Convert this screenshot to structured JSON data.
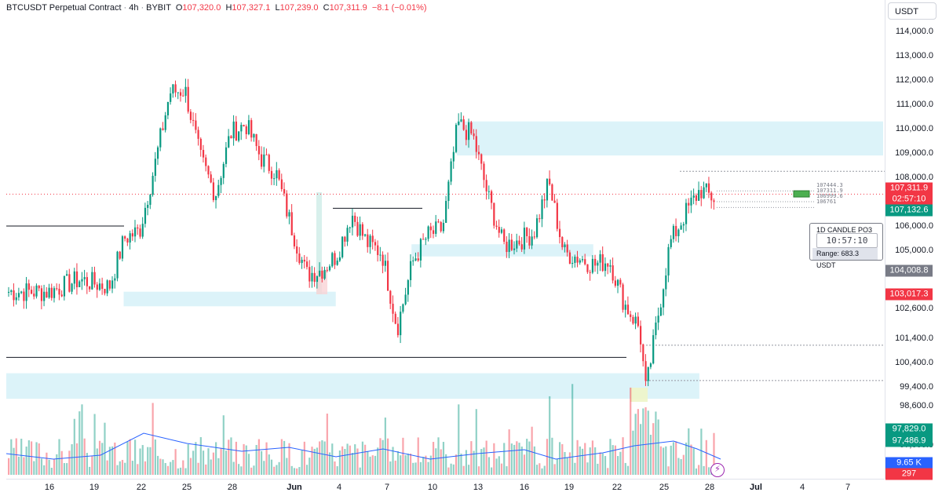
{
  "header": {
    "symbol": "BTCUSDT Perpetual Contract",
    "interval": "4h",
    "exchange": "BYBIT",
    "o_label": "O",
    "o_value": "107,320.0",
    "h_label": "H",
    "h_value": "107,327.1",
    "l_label": "L",
    "l_value": "107,239.0",
    "c_label": "C",
    "c_value": "107,311.9",
    "change": "−8.1 (−0.01%)"
  },
  "currency": "USDT",
  "price_ticks": [
    "114,000.0",
    "113,000.0",
    "112,000.0",
    "111,000.0",
    "110,000.0",
    "109,000.0",
    "108,000.0",
    "106,000.0",
    "105,000.0",
    "102,600.0",
    "101,400.0",
    "100,400.0",
    "99,400.0",
    "98,600.0",
    "97,000.0"
  ],
  "price_tags": [
    {
      "text": "107,311.9",
      "color": "#f23645"
    },
    {
      "text": "02:57:10",
      "color": "#f23645"
    },
    {
      "text": "107,132.6",
      "color": "#089981"
    },
    {
      "text": "104,008.8",
      "color": "#787b86"
    },
    {
      "text": "103,017.3",
      "color": "#f23645"
    },
    {
      "text": "97,829.0",
      "color": "#089981"
    },
    {
      "text": "97,486.9",
      "color": "#089981"
    },
    {
      "text": "9.65 K",
      "color": "#2962ff"
    },
    {
      "text": "297",
      "color": "#f23645"
    }
  ],
  "time_ticks": [
    "16",
    "19",
    "22",
    "25",
    "28",
    "Jun",
    "4",
    "7",
    "10",
    "13",
    "16",
    "19",
    "22",
    "25",
    "28",
    "Jul",
    "4",
    "7"
  ],
  "countdown_widget": {
    "title": "1D CANDLE PO3",
    "time": "10:57:10",
    "range": "Range: 683.3 USDT"
  },
  "mini_labels": [
    "107444.3",
    "107311.9",
    "106999.6",
    "106761"
  ],
  "lightning_icon": "⚡",
  "colors": {
    "up": "#089981",
    "down": "#f23645",
    "zone_blue": "#d6f1f8",
    "ma_line": "#2962ff"
  },
  "chart_data": {
    "type": "candlestick",
    "symbol": "BTCUSDT",
    "interval": "4h",
    "ylim": [
      96300,
      115000
    ],
    "last_close": 107311.9,
    "close_path": [
      {
        "x": "May 14",
        "y": 103300
      },
      {
        "x": "May 16",
        "y": 103800
      },
      {
        "x": "May 18",
        "y": 103500
      },
      {
        "x": "May 19",
        "y": 105500
      },
      {
        "x": "May 20",
        "y": 105800
      },
      {
        "x": "May 21",
        "y": 108500
      },
      {
        "x": "May 22",
        "y": 111500
      },
      {
        "x": "May 23",
        "y": 111600
      },
      {
        "x": "May 24",
        "y": 108800
      },
      {
        "x": "May 25",
        "y": 107300
      },
      {
        "x": "May 26",
        "y": 109800
      },
      {
        "x": "May 27",
        "y": 110200
      },
      {
        "x": "May 28",
        "y": 108800
      },
      {
        "x": "May 29",
        "y": 108200
      },
      {
        "x": "May 30",
        "y": 106000
      },
      {
        "x": "May 31",
        "y": 104000
      },
      {
        "x": "Jun 1",
        "y": 104200
      },
      {
        "x": "Jun 2",
        "y": 104800
      },
      {
        "x": "Jun 3",
        "y": 106500
      },
      {
        "x": "Jun 4",
        "y": 105300
      },
      {
        "x": "Jun 5",
        "y": 104900
      },
      {
        "x": "Jun 6",
        "y": 101800
      },
      {
        "x": "Jun 7",
        "y": 104500
      },
      {
        "x": "Jun 8",
        "y": 105600
      },
      {
        "x": "Jun 9",
        "y": 105900
      },
      {
        "x": "Jun 10",
        "y": 110200
      },
      {
        "x": "Jun 11",
        "y": 109700
      },
      {
        "x": "Jun 12",
        "y": 107200
      },
      {
        "x": "Jun 13",
        "y": 105200
      },
      {
        "x": "Jun 14",
        "y": 105400
      },
      {
        "x": "Jun 15",
        "y": 105700
      },
      {
        "x": "Jun 16",
        "y": 107800
      },
      {
        "x": "Jun 17",
        "y": 104900
      },
      {
        "x": "Jun 18",
        "y": 104700
      },
      {
        "x": "Jun 19",
        "y": 104400
      },
      {
        "x": "Jun 20",
        "y": 104600
      },
      {
        "x": "Jun 21",
        "y": 102800
      },
      {
        "x": "Jun 22",
        "y": 101800
      },
      {
        "x": "Jun 22",
        "y": 99200
      },
      {
        "x": "Jun 23",
        "y": 101500
      },
      {
        "x": "Jun 24",
        "y": 105300
      },
      {
        "x": "Jun 25",
        "y": 106500
      },
      {
        "x": "Jun 26",
        "y": 107500
      },
      {
        "x": "Jun 27",
        "y": 107100
      },
      {
        "x": "Jun 28",
        "y": 107300
      }
    ],
    "zones": [
      {
        "from": "Jun 10",
        "to": "end",
        "low": 108900,
        "high": 110300
      },
      {
        "from": "May 19",
        "to": "Jun 2",
        "low": 102700,
        "high": 103300
      },
      {
        "from": "Jun 7",
        "to": "Jun 19",
        "low": 104750,
        "high": 105250
      },
      {
        "from": "start",
        "to": "Jun 26",
        "low": 98900,
        "high": 99950
      }
    ],
    "horizontal_lines": [
      106000,
      106730,
      100600,
      101100,
      99650,
      108250
    ]
  }
}
